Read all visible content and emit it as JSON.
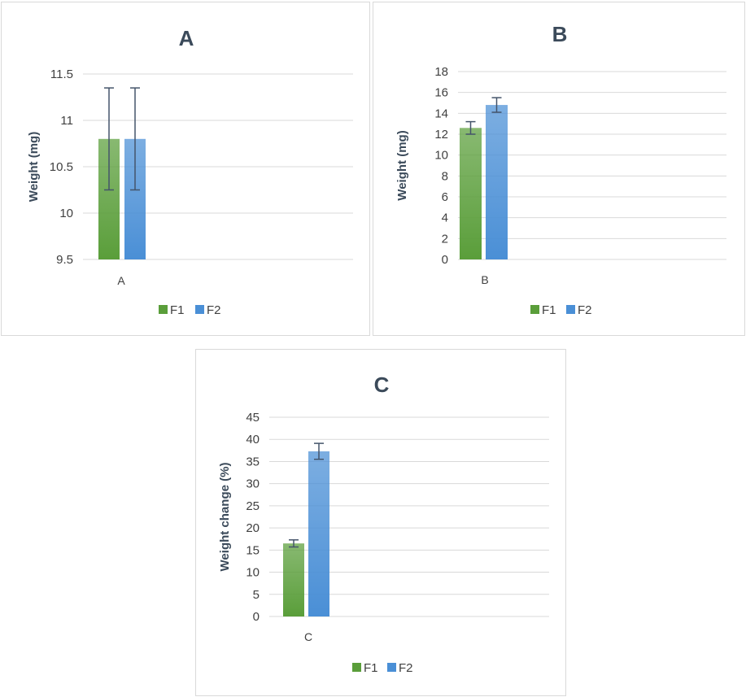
{
  "colors": {
    "F1": "#5a9e3a",
    "F2": "#4a8fd6",
    "grid": "#d9d9d9",
    "errorbar": "#44546a",
    "text": "#404040"
  },
  "chart_data": [
    {
      "type": "bar",
      "title": "A",
      "categories": [
        "A"
      ],
      "series": [
        {
          "name": "F1",
          "values": [
            10.8
          ],
          "error": [
            0.55
          ]
        },
        {
          "name": "F2",
          "values": [
            10.8
          ],
          "error": [
            0.55
          ]
        }
      ],
      "ylabel": "Weight  (mg)",
      "ylim": [
        9.5,
        11.5
      ],
      "yticks": [
        9.5,
        10,
        10.5,
        11,
        11.5
      ],
      "ytick_labels": [
        "9.5",
        "10",
        "10.5",
        "11",
        "11.5"
      ],
      "grid": true,
      "legend": "bottom"
    },
    {
      "type": "bar",
      "title": "B",
      "categories": [
        "B"
      ],
      "series": [
        {
          "name": "F1",
          "values": [
            12.6
          ],
          "error": [
            0.6
          ]
        },
        {
          "name": "F2",
          "values": [
            14.8
          ],
          "error": [
            0.7
          ]
        }
      ],
      "ylabel": "Weight  (mg)",
      "ylim": [
        0,
        18
      ],
      "yticks": [
        0,
        2,
        4,
        6,
        8,
        10,
        12,
        14,
        16,
        18
      ],
      "ytick_labels": [
        "0",
        "2",
        "4",
        "6",
        "8",
        "10",
        "12",
        "14",
        "16",
        "18"
      ],
      "grid": true,
      "legend": "bottom"
    },
    {
      "type": "bar",
      "title": "C",
      "categories": [
        "C"
      ],
      "series": [
        {
          "name": "F1",
          "values": [
            16.5
          ],
          "error": [
            0.8
          ]
        },
        {
          "name": "F2",
          "values": [
            37.3
          ],
          "error": [
            1.8
          ]
        }
      ],
      "ylabel": "Weight change (%)",
      "ylim": [
        0,
        45
      ],
      "yticks": [
        0,
        5,
        10,
        15,
        20,
        25,
        30,
        35,
        40,
        45
      ],
      "ytick_labels": [
        "0",
        "5",
        "10",
        "15",
        "20",
        "25",
        "30",
        "35",
        "40",
        "45"
      ],
      "grid": true,
      "legend": "bottom"
    }
  ]
}
